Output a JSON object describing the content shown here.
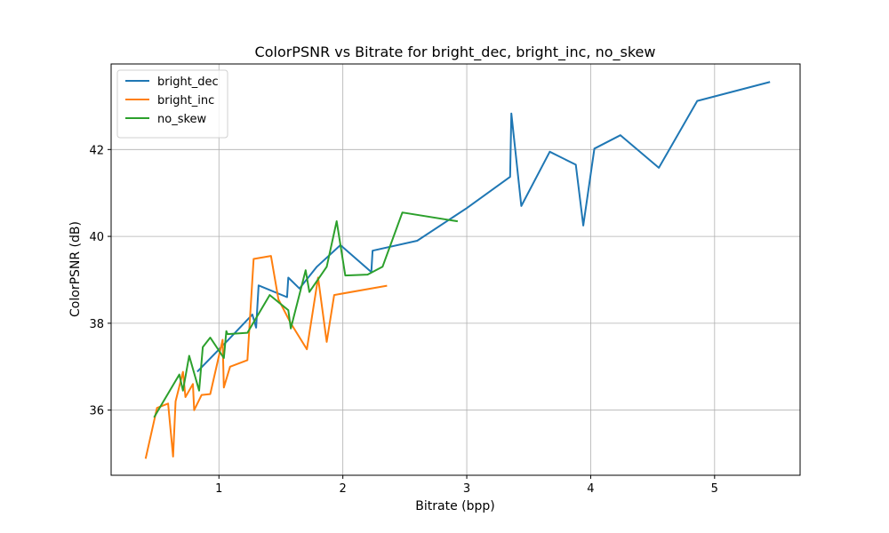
{
  "chart_data": {
    "type": "line",
    "title": "ColorPSNR vs Bitrate for bright_dec, bright_inc, no_skew",
    "xlabel": "Bitrate (bpp)",
    "ylabel": "ColorPSNR (dB)",
    "xlim": [
      0.13,
      5.69
    ],
    "ylim": [
      34.5,
      43.97
    ],
    "xticks": [
      1,
      2,
      3,
      4,
      5
    ],
    "yticks": [
      36,
      38,
      40,
      42
    ],
    "grid": true,
    "legend_position": "top-left",
    "series": [
      {
        "name": "bright_dec",
        "color": "#1f77b4",
        "points": [
          [
            0.83,
            36.9
          ],
          [
            1.07,
            37.6
          ],
          [
            1.27,
            38.2
          ],
          [
            1.3,
            37.9
          ],
          [
            1.32,
            38.87
          ],
          [
            1.55,
            38.6
          ],
          [
            1.56,
            39.05
          ],
          [
            1.65,
            38.8
          ],
          [
            1.79,
            39.3
          ],
          [
            1.98,
            39.8
          ],
          [
            2.23,
            39.18
          ],
          [
            2.24,
            39.67
          ],
          [
            2.6,
            39.9
          ],
          [
            3.0,
            40.65
          ],
          [
            3.35,
            41.37
          ],
          [
            3.36,
            42.83
          ],
          [
            3.44,
            40.7
          ],
          [
            3.67,
            41.95
          ],
          [
            3.88,
            41.65
          ],
          [
            3.94,
            40.25
          ],
          [
            4.03,
            42.02
          ],
          [
            4.24,
            42.33
          ],
          [
            4.55,
            41.58
          ],
          [
            4.86,
            43.12
          ],
          [
            5.44,
            43.55
          ]
        ]
      },
      {
        "name": "bright_inc",
        "color": "#ff7f0e",
        "points": [
          [
            0.41,
            34.9
          ],
          [
            0.5,
            36.05
          ],
          [
            0.59,
            36.15
          ],
          [
            0.63,
            34.93
          ],
          [
            0.65,
            36.2
          ],
          [
            0.71,
            36.88
          ],
          [
            0.73,
            36.3
          ],
          [
            0.79,
            36.6
          ],
          [
            0.8,
            36.0
          ],
          [
            0.86,
            36.35
          ],
          [
            0.93,
            36.37
          ],
          [
            1.03,
            37.62
          ],
          [
            1.04,
            36.52
          ],
          [
            1.09,
            37.0
          ],
          [
            1.23,
            37.15
          ],
          [
            1.28,
            39.48
          ],
          [
            1.42,
            39.55
          ],
          [
            1.48,
            38.55
          ],
          [
            1.58,
            38.0
          ],
          [
            1.71,
            37.4
          ],
          [
            1.8,
            39.05
          ],
          [
            1.87,
            37.57
          ],
          [
            1.93,
            38.65
          ],
          [
            2.35,
            38.86
          ]
        ]
      },
      {
        "name": "no_skew",
        "color": "#2ca02c",
        "points": [
          [
            0.48,
            35.85
          ],
          [
            0.51,
            36.0
          ],
          [
            0.68,
            36.82
          ],
          [
            0.71,
            36.45
          ],
          [
            0.76,
            37.25
          ],
          [
            0.84,
            36.45
          ],
          [
            0.87,
            37.45
          ],
          [
            0.93,
            37.67
          ],
          [
            1.04,
            37.2
          ],
          [
            1.06,
            37.82
          ],
          [
            1.07,
            37.75
          ],
          [
            1.23,
            37.78
          ],
          [
            1.41,
            38.65
          ],
          [
            1.56,
            38.3
          ],
          [
            1.58,
            37.88
          ],
          [
            1.7,
            39.22
          ],
          [
            1.73,
            38.72
          ],
          [
            1.87,
            39.3
          ],
          [
            1.95,
            40.35
          ],
          [
            2.02,
            39.1
          ],
          [
            2.2,
            39.12
          ],
          [
            2.32,
            39.3
          ],
          [
            2.48,
            40.55
          ],
          [
            2.92,
            40.35
          ]
        ]
      }
    ]
  }
}
